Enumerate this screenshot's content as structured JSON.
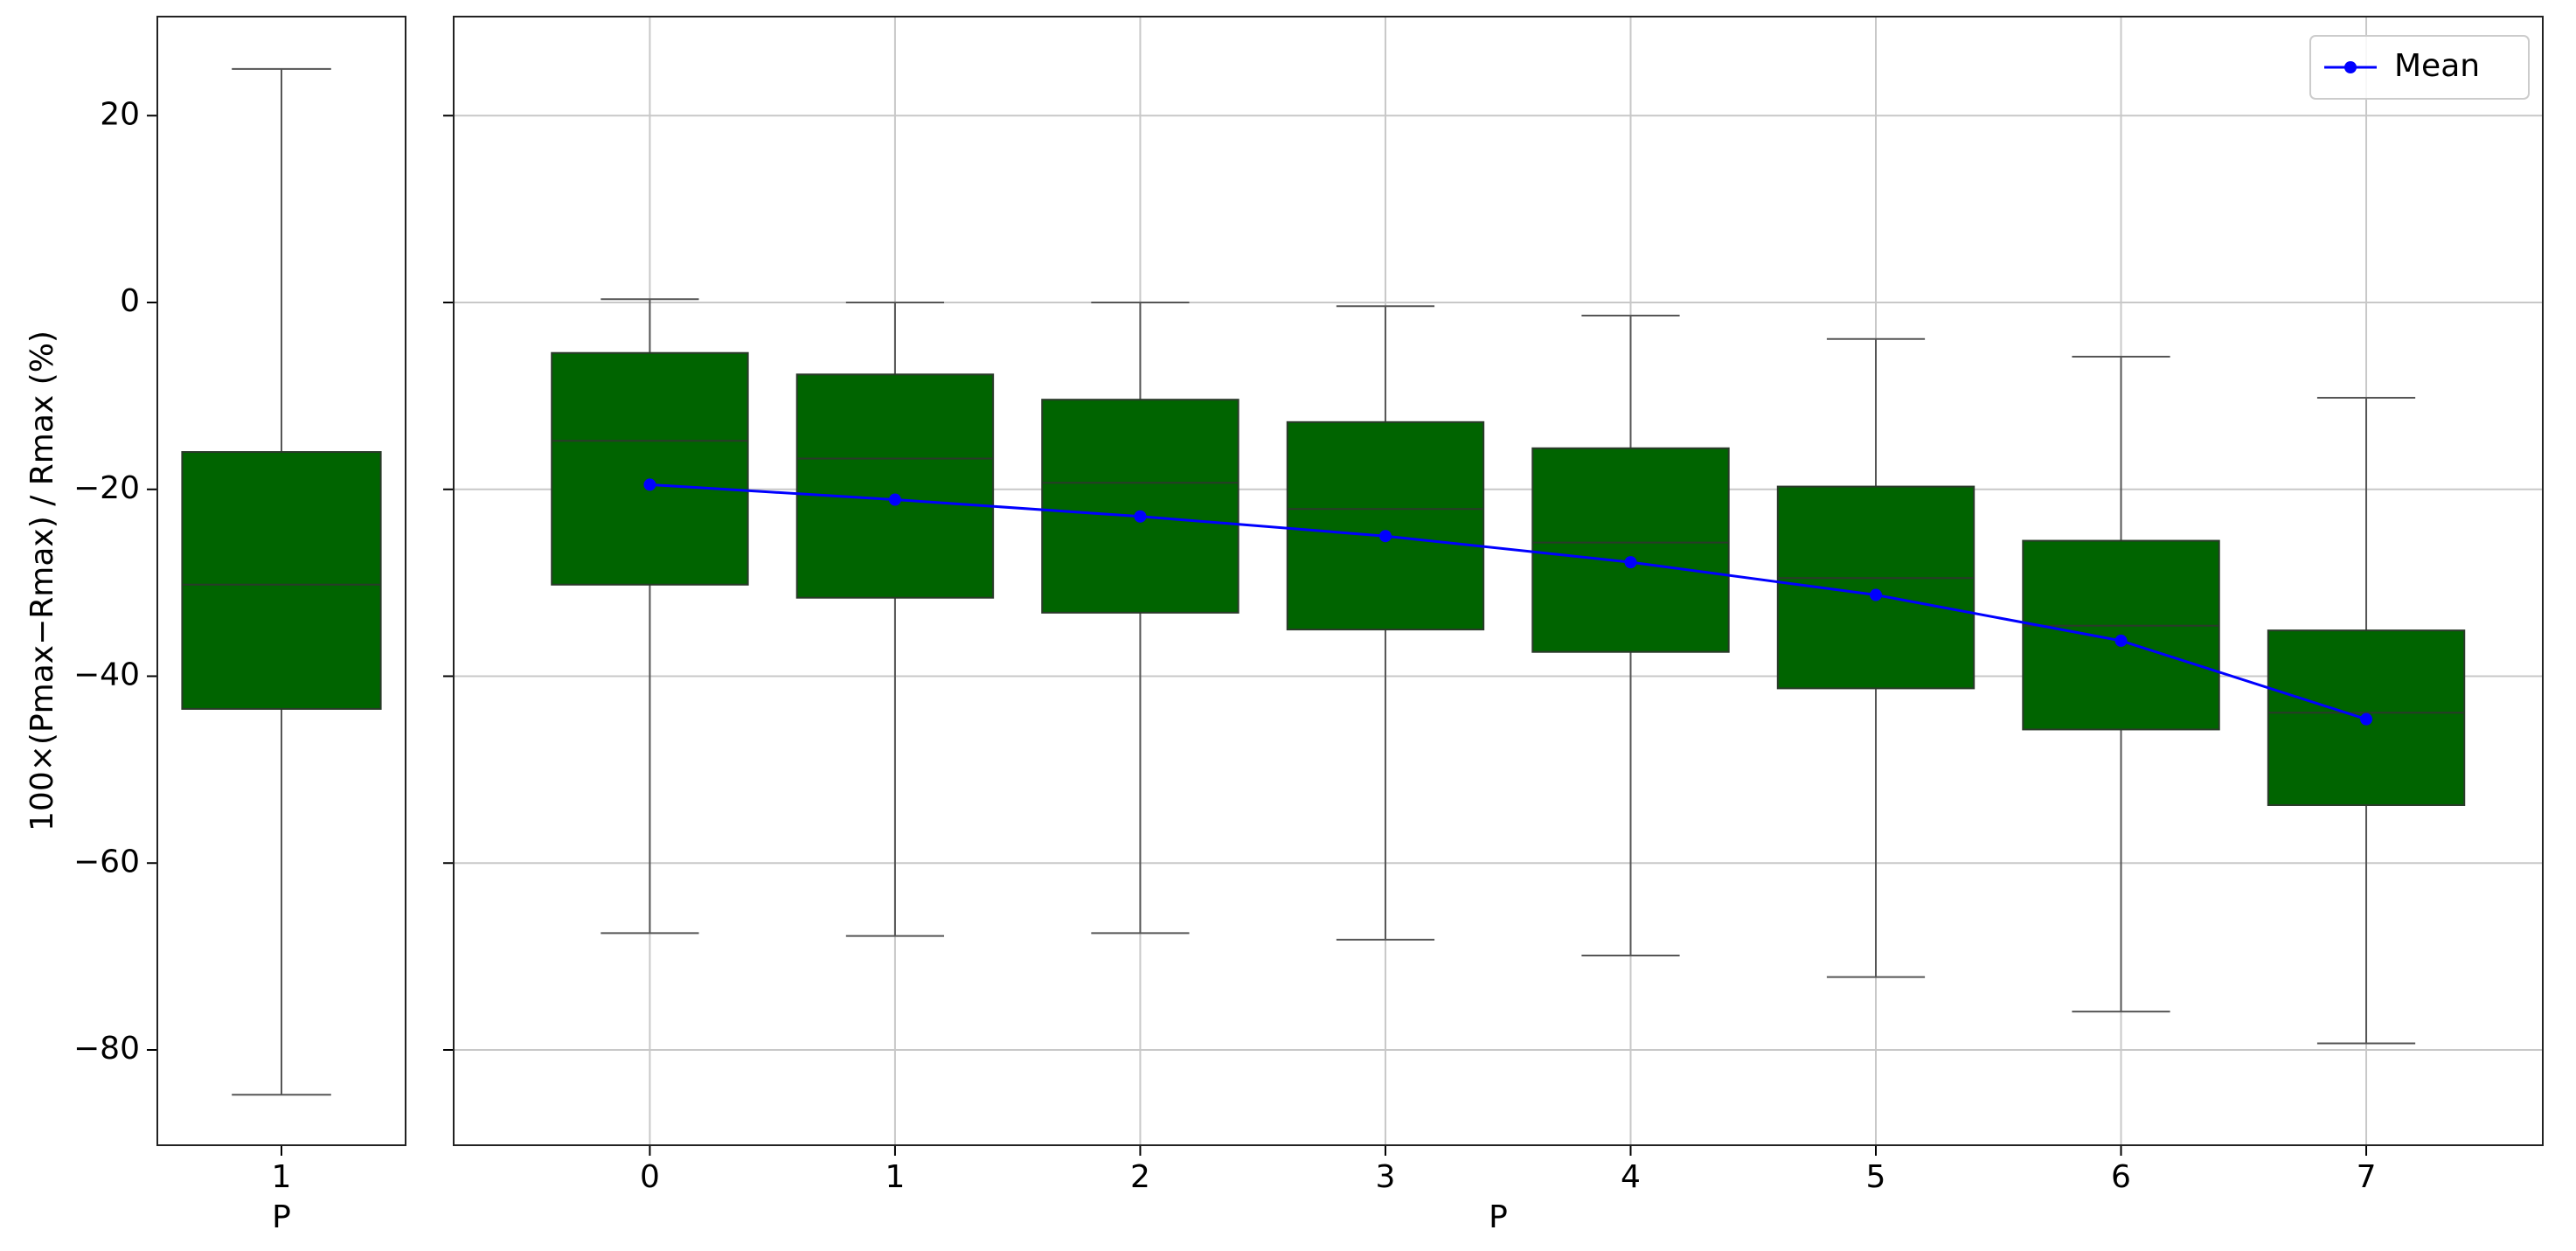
{
  "chart_data": [
    {
      "type": "box",
      "ylabel": "100×(Pmax−Rmax) / Rmax (%)",
      "xlabel": "P",
      "x": [
        1
      ],
      "xlim": [
        0.5,
        1.5
      ],
      "xticks": [
        1
      ],
      "ylim": [
        -90.2,
        30.6
      ],
      "yticks": [
        {
          "value": -80,
          "label": "−80"
        },
        {
          "value": -60,
          "label": "−60"
        },
        {
          "value": -40,
          "label": "−40"
        },
        {
          "value": -20,
          "label": "−20"
        },
        0,
        20
      ],
      "grid": false,
      "color": "#006400",
      "boxes": [
        {
          "whislo": -84.8,
          "q1": -43.5,
          "med": -30.2,
          "q3": -16,
          "whishi": 25
        }
      ]
    },
    {
      "type": "box",
      "xlabel": "P",
      "x": [
        0,
        1,
        2,
        3,
        4,
        5,
        6,
        7
      ],
      "xlim": [
        -0.8,
        7.72
      ],
      "xticks": [
        0,
        1,
        2,
        3,
        4,
        5,
        6,
        7
      ],
      "ylim": [
        -90.2,
        30.6
      ],
      "yticks": [
        -80,
        -60,
        -40,
        -20,
        0,
        20
      ],
      "grid": true,
      "color": "#006400",
      "legend": "upper right",
      "boxes": [
        {
          "whislo": -67.5,
          "q1": -30.2,
          "med": -14.8,
          "q3": -5.4,
          "whishi": 0.35
        },
        {
          "whislo": -67.8,
          "q1": -31.6,
          "med": -16.7,
          "q3": -7.7,
          "whishi": 0
        },
        {
          "whislo": -67.5,
          "q1": -33.2,
          "med": -19.3,
          "q3": -10.4,
          "whishi": 0
        },
        {
          "whislo": -68.2,
          "q1": -35.0,
          "med": -22.1,
          "q3": -12.8,
          "whishi": -0.4
        },
        {
          "whislo": -69.9,
          "q1": -37.4,
          "med": -25.7,
          "q3": -15.6,
          "whishi": -1.4
        },
        {
          "whislo": -72.2,
          "q1": -41.3,
          "med": -29.5,
          "q3": -19.7,
          "whishi": -3.9
        },
        {
          "whislo": -75.9,
          "q1": -45.7,
          "med": -34.6,
          "q3": -25.5,
          "whishi": -5.8
        },
        {
          "whislo": -79.3,
          "q1": -53.8,
          "med": -43.9,
          "q3": -35.1,
          "whishi": -10.2
        }
      ],
      "series": [
        {
          "name": "Mean",
          "color": "#0000ff",
          "values": [
            -19.5,
            -21.1,
            -22.9,
            -25.0,
            -27.8,
            -31.3,
            -36.2,
            -44.6
          ]
        }
      ]
    }
  ]
}
